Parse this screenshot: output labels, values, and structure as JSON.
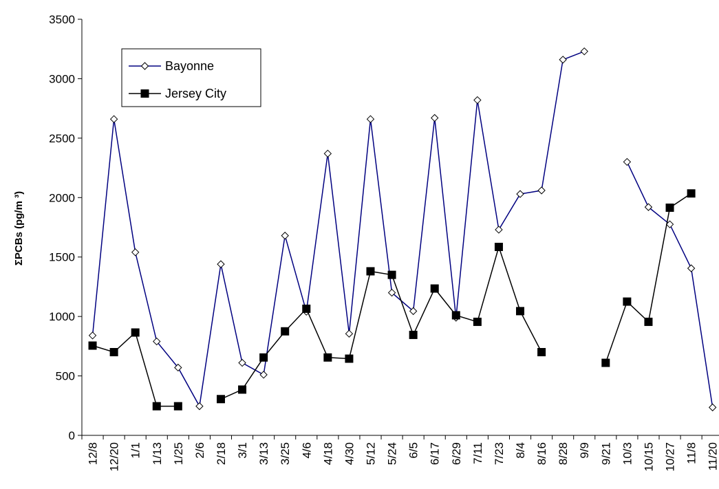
{
  "chart_data": {
    "type": "line",
    "title": "",
    "xlabel": "",
    "ylabel": "ΣPCBs (pg/m ³)",
    "ylim": [
      0,
      3500
    ],
    "yticks": [
      0,
      500,
      1000,
      1500,
      2000,
      2500,
      3000,
      3500
    ],
    "grid": false,
    "legend_position": "top-left",
    "categories": [
      "12/8",
      "12/20",
      "1/1",
      "1/13",
      "1/25",
      "2/6",
      "2/18",
      "3/1",
      "3/13",
      "3/25",
      "4/6",
      "4/18",
      "4/30",
      "5/12",
      "5/24",
      "6/5",
      "6/17",
      "6/29",
      "7/11",
      "7/23",
      "8/4",
      "8/16",
      "8/28",
      "9/9",
      "9/21",
      "10/3",
      "10/15",
      "10/27",
      "11/8",
      "11/20"
    ],
    "series": [
      {
        "name": "Bayonne",
        "color": "#000080",
        "marker": "diamond-open",
        "values": [
          840,
          2660,
          1540,
          790,
          570,
          245,
          1440,
          610,
          510,
          1680,
          1040,
          2370,
          855,
          2660,
          1200,
          1045,
          2670,
          990,
          2820,
          1730,
          2030,
          2060,
          3160,
          3230,
          null,
          2300,
          1920,
          1775,
          1405,
          235
        ]
      },
      {
        "name": "Jersey City",
        "color": "#000000",
        "marker": "square-filled",
        "values": [
          755,
          700,
          865,
          245,
          245,
          null,
          305,
          385,
          655,
          875,
          1065,
          655,
          645,
          1380,
          1350,
          845,
          1235,
          1010,
          955,
          1585,
          1045,
          700,
          null,
          null,
          610,
          1125,
          955,
          1915,
          2035,
          null
        ]
      }
    ]
  }
}
